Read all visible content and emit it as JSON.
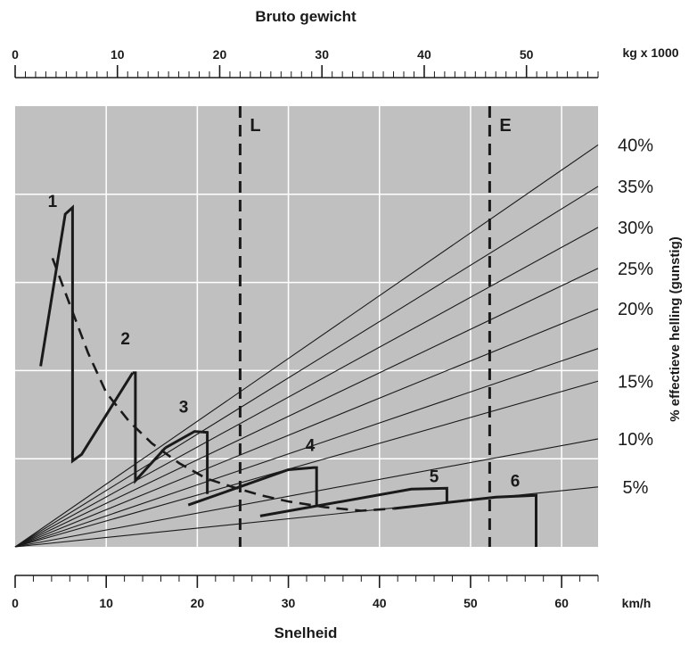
{
  "chart_data": {
    "type": "line",
    "title": "",
    "top_axis": {
      "label": "Bruto gewicht",
      "unit": "kg x 1000",
      "range": [
        0,
        57
      ],
      "ticks": [
        0,
        10,
        20,
        30,
        40,
        50
      ],
      "minor_tick_step": 1
    },
    "bottom_axis": {
      "label": "Snelheid",
      "unit": "km/h",
      "range": [
        0,
        64
      ],
      "ticks": [
        0,
        10,
        20,
        30,
        40,
        50,
        60
      ],
      "minor_tick_step": 2
    },
    "plot": {
      "background": "#c0c0c0",
      "grid": true,
      "gridline_color": "#ffffff",
      "y_scale": "relative (0 = bottom, 1 = top of plot area)"
    },
    "right_axis_label": "% effectieve helling (gunstig)",
    "grade_lines": [
      {
        "label": "5%",
        "y_end": 0.136
      },
      {
        "label": "10%",
        "y_end": 0.245
      },
      {
        "label": "15%",
        "y_end": 0.376
      },
      {
        "label": "",
        "y_end": 0.45
      },
      {
        "label": "20%",
        "y_end": 0.54
      },
      {
        "label": "25%",
        "y_end": 0.632
      },
      {
        "label": "30%",
        "y_end": 0.725
      },
      {
        "label": "35%",
        "y_end": 0.818
      },
      {
        "label": "40%",
        "y_end": 0.912
      }
    ],
    "markers": [
      {
        "label": "L",
        "x": 24.7
      },
      {
        "label": "E",
        "x": 52.1
      }
    ],
    "gear_curves": [
      {
        "label": "1",
        "label_pos": [
          4.1,
          0.785
        ],
        "points": [
          [
            2.8,
            0.41
          ],
          [
            5.5,
            0.755
          ],
          [
            6.3,
            0.77
          ],
          [
            6.3,
            0.195
          ],
          [
            7.3,
            0.21
          ],
          [
            12.9,
            0.395
          ]
        ]
      },
      {
        "label": "2",
        "label_pos": [
          12.1,
          0.474
        ],
        "points": [
          [
            12.9,
            0.395
          ],
          [
            13.2,
            0.395
          ],
          [
            13.2,
            0.15
          ],
          [
            16.5,
            0.225
          ]
        ]
      },
      {
        "label": "3",
        "label_pos": [
          18.5,
          0.319
        ],
        "points": [
          [
            16.5,
            0.225
          ],
          [
            19.7,
            0.262
          ],
          [
            21.1,
            0.26
          ],
          [
            21.1,
            0.12
          ]
        ]
      },
      {
        "label": "4",
        "label_pos": [
          32.4,
          0.232
        ],
        "points": [
          [
            19.0,
            0.095
          ],
          [
            30.0,
            0.175
          ],
          [
            32.8,
            0.18
          ],
          [
            33.1,
            0.18
          ],
          [
            33.1,
            0.095
          ]
        ]
      },
      {
        "label": "5",
        "label_pos": [
          46.0,
          0.161
        ],
        "points": [
          [
            26.9,
            0.07
          ],
          [
            43.5,
            0.131
          ],
          [
            47.4,
            0.133
          ],
          [
            47.4,
            0.103
          ]
        ]
      },
      {
        "label": "6",
        "label_pos": [
          54.9,
          0.151
        ],
        "points": [
          [
            41.6,
            0.087
          ],
          [
            52.8,
            0.113
          ],
          [
            57.2,
            0.117
          ],
          [
            57.2,
            0.0
          ]
        ]
      }
    ],
    "dashed_curve": [
      [
        4.1,
        0.655
      ],
      [
        6.0,
        0.55
      ],
      [
        8.0,
        0.44
      ],
      [
        10.0,
        0.35
      ],
      [
        12.5,
        0.285
      ],
      [
        15.0,
        0.235
      ],
      [
        18.0,
        0.19
      ],
      [
        21.0,
        0.155
      ],
      [
        24.0,
        0.135
      ],
      [
        27.0,
        0.117
      ],
      [
        30.0,
        0.103
      ],
      [
        34.0,
        0.09
      ],
      [
        38.0,
        0.082
      ],
      [
        41.6,
        0.087
      ]
    ]
  }
}
